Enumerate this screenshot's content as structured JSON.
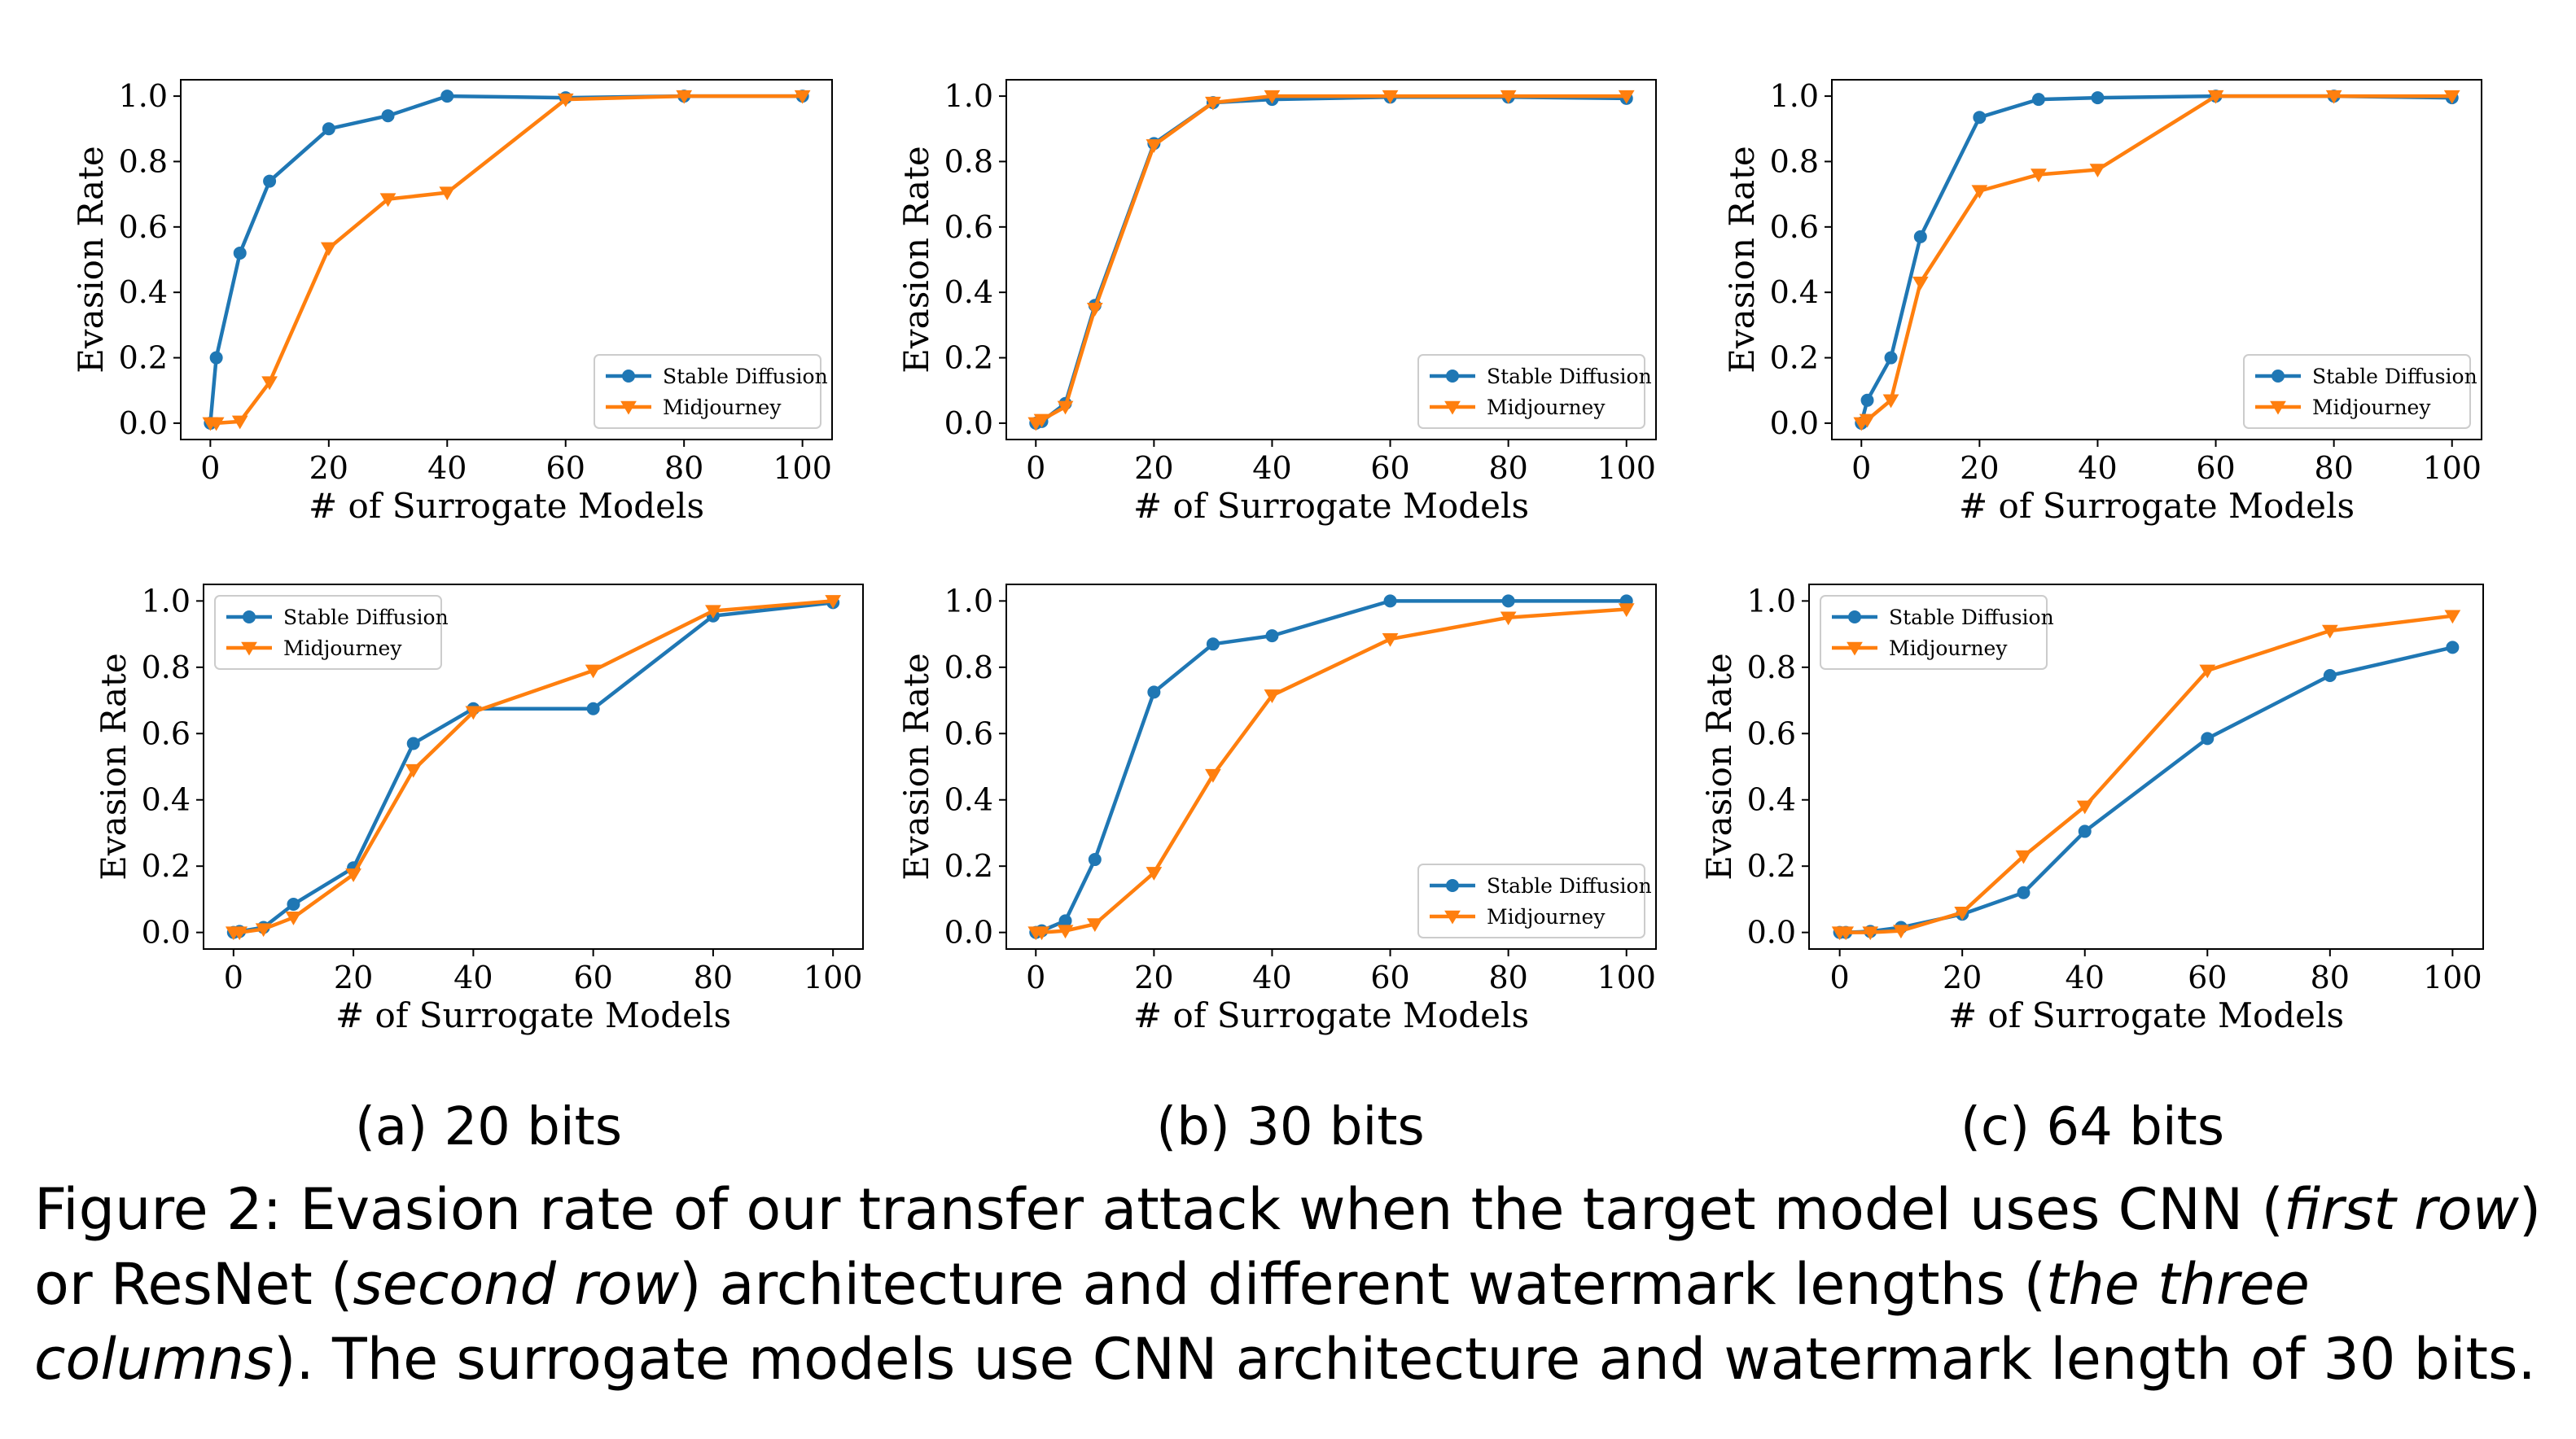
{
  "chart_data": [
    {
      "type": "line",
      "row": "first row",
      "column": "(a) 20 bits",
      "xlabel": "# of Surrogate Models",
      "ylabel": "Evasion Rate",
      "xlim": [
        -5,
        105
      ],
      "ylim": [
        -0.05,
        1.05
      ],
      "xticks": [
        0,
        20,
        40,
        60,
        80,
        100
      ],
      "yticks": [
        0.0,
        0.2,
        0.4,
        0.6,
        0.8,
        1.0
      ],
      "legend_loc": "lower-right",
      "series": [
        {
          "name": "Stable Diffusion",
          "color": "#1f77b4",
          "marker": "circle",
          "x": [
            0,
            1,
            5,
            10,
            20,
            30,
            40,
            60,
            80,
            100
          ],
          "y": [
            0.0,
            0.2,
            0.52,
            0.74,
            0.9,
            0.94,
            1.0,
            0.995,
            1.0,
            1.0
          ]
        },
        {
          "name": "Midjourney",
          "color": "#ff7f0e",
          "marker": "triangle-down",
          "x": [
            0,
            1,
            5,
            10,
            20,
            30,
            40,
            60,
            80,
            100
          ],
          "y": [
            0.0,
            0.0,
            0.005,
            0.125,
            0.535,
            0.685,
            0.705,
            0.99,
            1.0,
            1.0
          ]
        }
      ]
    },
    {
      "type": "line",
      "row": "first row",
      "column": "(b) 30 bits",
      "xlabel": "# of Surrogate Models",
      "ylabel": "Evasion Rate",
      "xlim": [
        -5,
        105
      ],
      "ylim": [
        -0.05,
        1.05
      ],
      "xticks": [
        0,
        20,
        40,
        60,
        80,
        100
      ],
      "yticks": [
        0.0,
        0.2,
        0.4,
        0.6,
        0.8,
        1.0
      ],
      "legend_loc": "lower-right",
      "series": [
        {
          "name": "Stable Diffusion",
          "color": "#1f77b4",
          "marker": "circle",
          "x": [
            0,
            1,
            5,
            10,
            20,
            30,
            40,
            60,
            80,
            100
          ],
          "y": [
            0.0,
            0.005,
            0.06,
            0.36,
            0.855,
            0.98,
            0.99,
            0.997,
            0.997,
            0.993
          ]
        },
        {
          "name": "Midjourney",
          "color": "#ff7f0e",
          "marker": "triangle-down",
          "x": [
            0,
            1,
            5,
            10,
            20,
            30,
            40,
            60,
            80,
            100
          ],
          "y": [
            0.0,
            0.01,
            0.05,
            0.35,
            0.85,
            0.98,
            1.0,
            1.0,
            1.0,
            1.0
          ]
        }
      ]
    },
    {
      "type": "line",
      "row": "first row",
      "column": "(c) 64 bits",
      "xlabel": "# of Surrogate Models",
      "ylabel": "Evasion Rate",
      "xlim": [
        -5,
        105
      ],
      "ylim": [
        -0.05,
        1.05
      ],
      "xticks": [
        0,
        20,
        40,
        60,
        80,
        100
      ],
      "yticks": [
        0.0,
        0.2,
        0.4,
        0.6,
        0.8,
        1.0
      ],
      "legend_loc": "lower-right",
      "series": [
        {
          "name": "Stable Diffusion",
          "color": "#1f77b4",
          "marker": "circle",
          "x": [
            0,
            1,
            5,
            10,
            20,
            30,
            40,
            60,
            80,
            100
          ],
          "y": [
            0.0,
            0.07,
            0.2,
            0.57,
            0.935,
            0.99,
            0.995,
            1.0,
            1.0,
            0.995
          ]
        },
        {
          "name": "Midjourney",
          "color": "#ff7f0e",
          "marker": "triangle-down",
          "x": [
            0,
            1,
            5,
            10,
            20,
            30,
            40,
            60,
            80,
            100
          ],
          "y": [
            0.0,
            0.01,
            0.07,
            0.43,
            0.71,
            0.76,
            0.775,
            1.0,
            1.0,
            1.0
          ]
        }
      ]
    },
    {
      "type": "line",
      "row": "second row",
      "column": "(a) 20 bits",
      "xlabel": "# of Surrogate Models",
      "ylabel": "Evasion Rate",
      "xlim": [
        -5,
        105
      ],
      "ylim": [
        -0.05,
        1.05
      ],
      "xticks": [
        0,
        20,
        40,
        60,
        80,
        100
      ],
      "yticks": [
        0.0,
        0.2,
        0.4,
        0.6,
        0.8,
        1.0
      ],
      "legend_loc": "upper-left",
      "series": [
        {
          "name": "Stable Diffusion",
          "color": "#1f77b4",
          "marker": "circle",
          "x": [
            0,
            1,
            5,
            10,
            20,
            30,
            40,
            60,
            80,
            100
          ],
          "y": [
            0.0,
            0.003,
            0.015,
            0.085,
            0.195,
            0.57,
            0.675,
            0.675,
            0.955,
            0.995
          ]
        },
        {
          "name": "Midjourney",
          "color": "#ff7f0e",
          "marker": "triangle-down",
          "x": [
            0,
            1,
            5,
            10,
            20,
            30,
            40,
            60,
            80,
            100
          ],
          "y": [
            0.0,
            0.0,
            0.01,
            0.045,
            0.175,
            0.49,
            0.665,
            0.79,
            0.97,
            1.0
          ]
        }
      ]
    },
    {
      "type": "line",
      "row": "second row",
      "column": "(b) 30 bits",
      "xlabel": "# of Surrogate Models",
      "ylabel": "Evasion Rate",
      "xlim": [
        -5,
        105
      ],
      "ylim": [
        -0.05,
        1.05
      ],
      "xticks": [
        0,
        20,
        40,
        60,
        80,
        100
      ],
      "yticks": [
        0.0,
        0.2,
        0.4,
        0.6,
        0.8,
        1.0
      ],
      "legend_loc": "lower-right",
      "series": [
        {
          "name": "Stable Diffusion",
          "color": "#1f77b4",
          "marker": "circle",
          "x": [
            0,
            1,
            5,
            10,
            20,
            30,
            40,
            60,
            80,
            100
          ],
          "y": [
            0.0,
            0.005,
            0.035,
            0.22,
            0.725,
            0.87,
            0.895,
            1.0,
            1.0,
            1.0
          ]
        },
        {
          "name": "Midjourney",
          "color": "#ff7f0e",
          "marker": "triangle-down",
          "x": [
            0,
            1,
            5,
            10,
            20,
            30,
            40,
            60,
            80,
            100
          ],
          "y": [
            0.0,
            0.0,
            0.005,
            0.025,
            0.18,
            0.475,
            0.715,
            0.885,
            0.95,
            0.975
          ]
        }
      ]
    },
    {
      "type": "line",
      "row": "second row",
      "column": "(c) 64 bits",
      "xlabel": "# of Surrogate Models",
      "ylabel": "Evasion Rate",
      "xlim": [
        -5,
        105
      ],
      "ylim": [
        -0.05,
        1.05
      ],
      "xticks": [
        0,
        20,
        40,
        60,
        80,
        100
      ],
      "yticks": [
        0.0,
        0.2,
        0.4,
        0.6,
        0.8,
        1.0
      ],
      "legend_loc": "upper-left",
      "series": [
        {
          "name": "Stable Diffusion",
          "color": "#1f77b4",
          "marker": "circle",
          "x": [
            0,
            1,
            5,
            10,
            20,
            30,
            40,
            60,
            80,
            100
          ],
          "y": [
            0.0,
            0.0,
            0.003,
            0.015,
            0.055,
            0.12,
            0.305,
            0.585,
            0.775,
            0.86
          ]
        },
        {
          "name": "Midjourney",
          "color": "#ff7f0e",
          "marker": "triangle-down",
          "x": [
            0,
            1,
            5,
            10,
            20,
            30,
            40,
            60,
            80,
            100
          ],
          "y": [
            0.0,
            0.0,
            0.0,
            0.005,
            0.06,
            0.23,
            0.38,
            0.79,
            0.91,
            0.955
          ]
        }
      ]
    }
  ],
  "subfigure_labels": [
    "(a) 20 bits",
    "(b) 30 bits",
    "(c) 64 bits"
  ],
  "caption": {
    "t1": "Figure 2: Evasion rate of our transfer attack when the target model uses CNN (",
    "e1": "first row",
    "t2": ") or ResNet (",
    "e2": "second row",
    "t3": ") architecture and different watermark lengths (",
    "e3": "the three columns",
    "t4": "). The surrogate models use CNN architecture and watermark length of 30 bits."
  }
}
